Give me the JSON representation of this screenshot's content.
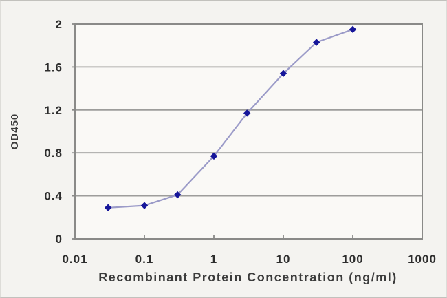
{
  "chart_data": {
    "type": "line",
    "title": "",
    "xlabel": "Recombinant Protein Concentration (ng/ml)",
    "ylabel": "OD450",
    "x_scale": "log",
    "xlim": [
      0.01,
      1000
    ],
    "ylim": [
      0,
      2
    ],
    "x_ticks": [
      0.01,
      0.1,
      1,
      10,
      100,
      1000
    ],
    "x_tick_labels": [
      "0.01",
      "0.1",
      "1",
      "10",
      "100",
      "1000"
    ],
    "y_ticks": [
      0,
      0.4,
      0.8,
      1.2,
      1.6,
      2
    ],
    "y_tick_labels": [
      "0",
      "0.4",
      "0.8",
      "1.2",
      "1.6",
      "2"
    ],
    "grid": "horizontal",
    "legend": "none",
    "series": [
      {
        "name": "OD450",
        "marker": "diamond",
        "points": [
          [
            0.03,
            0.29
          ],
          [
            0.1,
            0.31
          ],
          [
            0.3,
            0.41
          ],
          [
            1,
            0.77
          ],
          [
            3,
            1.17
          ],
          [
            10,
            1.54
          ],
          [
            30,
            1.83
          ],
          [
            100,
            1.95
          ]
        ]
      }
    ],
    "colors": {
      "line": "#9b9bc8",
      "marker": "#16169a",
      "grid": "#9d9d9b",
      "axis": "#8a8a88",
      "tick_text": "#2d2d2d",
      "title_text": "#3b3b3b",
      "plot_bg": "#faf9f6",
      "page_bg": "#f4f3f0"
    }
  }
}
